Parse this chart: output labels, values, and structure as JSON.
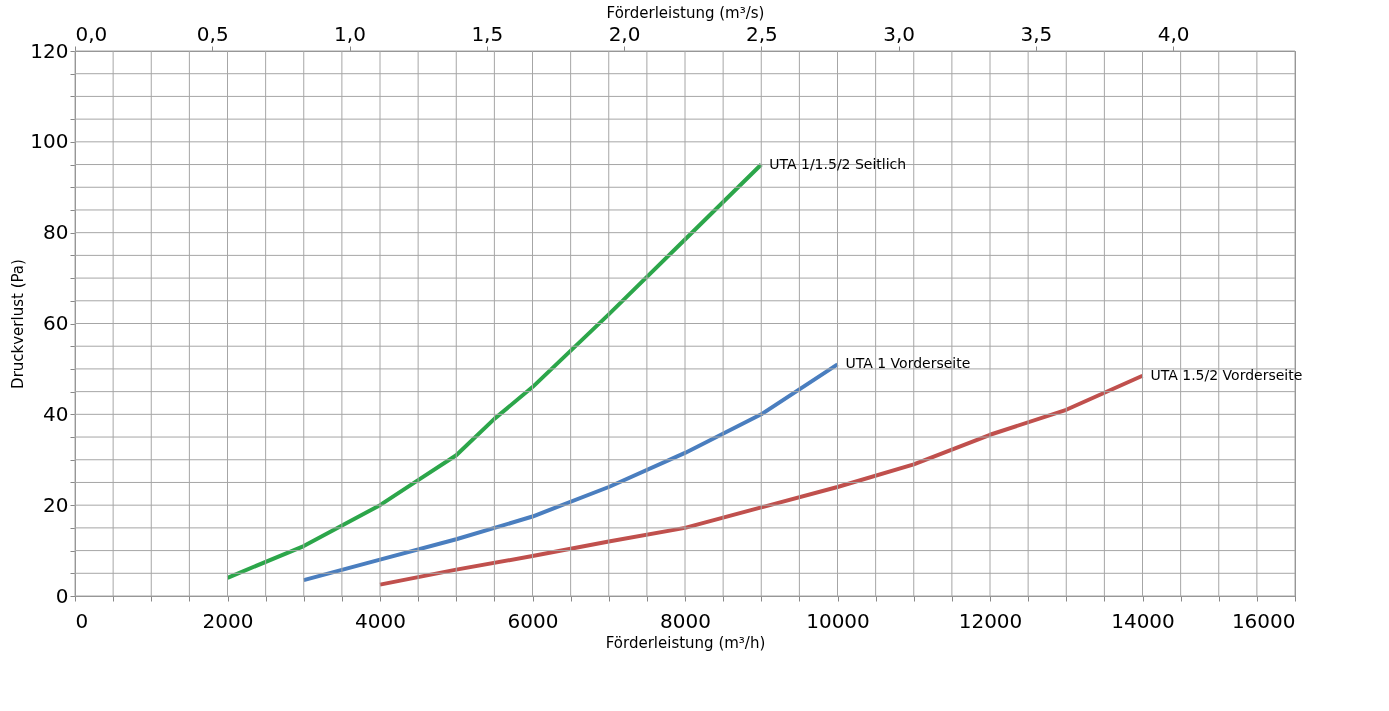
{
  "chart_data": {
    "type": "line",
    "xlabel": "Förderleistung (m³/h)",
    "ylabel": "Druckverlust (Pa)",
    "x2label": "Förderleistung (m³/s)",
    "xlim": [
      0,
      16000
    ],
    "ylim": [
      0,
      120
    ],
    "x2lim": [
      0,
      4.444
    ],
    "xticks": [
      0,
      {
        "value": 500,
        "label": null
      },
      {
        "value": 1000,
        "label": null
      },
      {
        "value": 1500,
        "label": null
      },
      2000,
      {
        "value": 2500,
        "label": null
      },
      {
        "value": 3000,
        "label": null
      },
      {
        "value": 3500,
        "label": null
      },
      4000,
      {
        "value": 4500,
        "label": null
      },
      {
        "value": 5000,
        "label": null
      },
      {
        "value": 5500,
        "label": null
      },
      6000,
      {
        "value": 6500,
        "label": null
      },
      {
        "value": 7000,
        "label": null
      },
      {
        "value": 7500,
        "label": null
      },
      8000,
      {
        "value": 8500,
        "label": null
      },
      {
        "value": 9000,
        "label": null
      },
      {
        "value": 9500,
        "label": null
      },
      10000,
      {
        "value": 10500,
        "label": null
      },
      {
        "value": 11000,
        "label": null
      },
      {
        "value": 11500,
        "label": null
      },
      12000,
      {
        "value": 12500,
        "label": null
      },
      {
        "value": 13000,
        "label": null
      },
      {
        "value": 13500,
        "label": null
      },
      14000,
      {
        "value": 14500,
        "label": null
      },
      {
        "value": 15000,
        "label": null
      },
      {
        "value": 15500,
        "label": null
      },
      16000
    ],
    "yticks": [
      0,
      {
        "value": 5,
        "label": null
      },
      {
        "value": 10,
        "label": null
      },
      {
        "value": 15,
        "label": null
      },
      20,
      {
        "value": 25,
        "label": null
      },
      {
        "value": 30,
        "label": null
      },
      {
        "value": 35,
        "label": null
      },
      40,
      {
        "value": 45,
        "label": null
      },
      {
        "value": 50,
        "label": null
      },
      {
        "value": 55,
        "label": null
      },
      60,
      {
        "value": 65,
        "label": null
      },
      {
        "value": 70,
        "label": null
      },
      {
        "value": 75,
        "label": null
      },
      80,
      {
        "value": 85,
        "label": null
      },
      {
        "value": 90,
        "label": null
      },
      {
        "value": 95,
        "label": null
      },
      100,
      {
        "value": 105,
        "label": null
      },
      {
        "value": 110,
        "label": null
      },
      {
        "value": 115,
        "label": null
      },
      120
    ],
    "x2ticks": [
      {
        "value": 0,
        "label": "0,0"
      },
      {
        "value": 0.5,
        "label": "0,5"
      },
      {
        "value": 1.0,
        "label": "1,0"
      },
      {
        "value": 1.5,
        "label": "1,5"
      },
      {
        "value": 2.0,
        "label": "2,0"
      },
      {
        "value": 2.5,
        "label": "2,5"
      },
      {
        "value": 3.0,
        "label": "3,0"
      },
      {
        "value": 3.5,
        "label": "3,5"
      },
      {
        "value": 4.0,
        "label": "4,0"
      }
    ],
    "grid": true,
    "legend": false,
    "line_style": "solid",
    "marker": "none",
    "series": [
      {
        "color": "#2ca64a",
        "x": [
          2000,
          3000,
          4000,
          4500,
          5000,
          5500,
          6000,
          7000,
          8000,
          9000
        ],
        "values": [
          4,
          11,
          20,
          25.5,
          31,
          39,
          46,
          62,
          78.5,
          95
        ]
      },
      {
        "color": "#4a7ebf",
        "x": [
          3000,
          4000,
          5000,
          6000,
          7000,
          8000,
          9000,
          10000
        ],
        "values": [
          3.5,
          8,
          12.5,
          17.5,
          24,
          31.5,
          40,
          51
        ]
      },
      {
        "color": "#c0504d",
        "x": [
          4000,
          5000,
          6000,
          7000,
          8000,
          9000,
          10000,
          11000,
          12000,
          13000,
          14000
        ],
        "values": [
          2.5,
          5.8,
          8.8,
          12,
          15,
          19.5,
          24,
          29,
          35.5,
          41,
          48.5
        ]
      }
    ],
    "annotations": [
      {
        "text": "UTA 1/1.5/2 Seitlich",
        "x": 9000,
        "y": 95
      },
      {
        "text": "UTA 1 Vorderseite",
        "x": 10000,
        "y": 51
      },
      {
        "text": "UTA 1.5/2 Vorderseite",
        "x": 14000,
        "y": 48.5
      }
    ]
  }
}
